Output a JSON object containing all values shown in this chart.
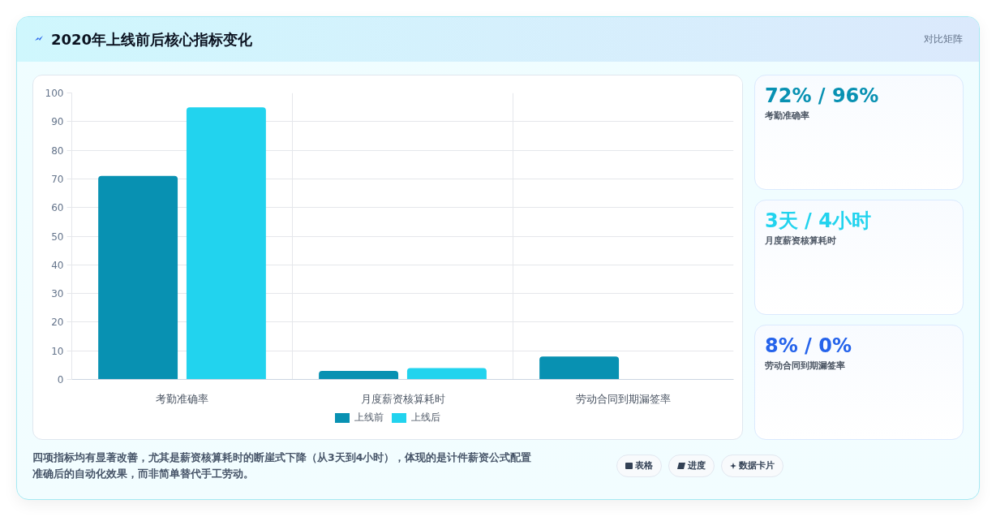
{
  "chart_data": [
    {
      "type": "bar",
      "title": "2020年上线前后核心指标变化",
      "categories": [
        "考勤准确率",
        "月度薪资核算耗时",
        "劳动合同到期漏签率"
      ],
      "series": [
        {
          "name": "上线前",
          "color": "#0891b2",
          "values": [
            71,
            3,
            8
          ]
        },
        {
          "name": "上线后",
          "color": "#22d3ee",
          "values": [
            95,
            4,
            0
          ]
        }
      ],
      "ylim": [
        0,
        100
      ],
      "yticks": [
        0,
        10,
        20,
        30,
        40,
        50,
        60,
        70,
        80,
        90,
        100
      ],
      "grid": true,
      "legend": "bottom",
      "annotations": [
        "四项指标均有显著改善，尤其是薪资核算耗时的断崖式下降（从3天到4小时），体现的是计件薪资公式配置准确后的自动化效果，而非简单替代手工劳动。",
        "表格",
        "进度",
        "数据卡片"
      ]
    },
    {
      "type": "other",
      "title": "对比矩阵",
      "categories": [
        "考勤准确率",
        "月度薪资核算耗时",
        "劳动合同到期漏签率"
      ],
      "value_labels": [
        "72% / 96%",
        "3天 / 4小时",
        "8% / 0%"
      ]
    }
  ]
}
